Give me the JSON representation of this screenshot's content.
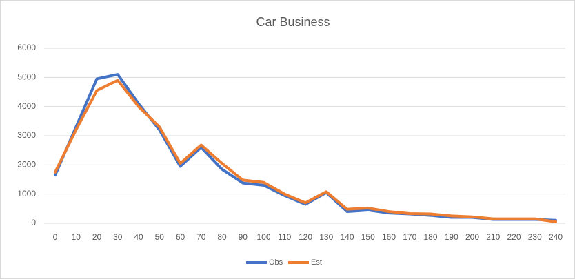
{
  "chart_data": {
    "type": "line",
    "title": "Car Business",
    "categories": [
      0,
      10,
      20,
      30,
      40,
      50,
      60,
      70,
      80,
      90,
      100,
      110,
      120,
      130,
      140,
      150,
      160,
      170,
      180,
      190,
      200,
      210,
      220,
      230,
      240
    ],
    "series": [
      {
        "name": "Obs",
        "color": "#4472c4",
        "values": [
          1650,
          3300,
          4950,
          5100,
          4100,
          3200,
          1950,
          2600,
          1850,
          1380,
          1300,
          950,
          650,
          1050,
          400,
          450,
          350,
          320,
          270,
          200,
          200,
          130,
          130,
          130,
          100
        ]
      },
      {
        "name": "Est",
        "color": "#ed7d31",
        "values": [
          1750,
          3200,
          4550,
          4900,
          4000,
          3300,
          2050,
          2680,
          2050,
          1480,
          1400,
          1000,
          700,
          1080,
          480,
          520,
          400,
          330,
          320,
          250,
          220,
          150,
          150,
          150,
          50
        ]
      }
    ],
    "ylim": [
      0,
      6000
    ],
    "yticks": [
      0,
      1000,
      2000,
      3000,
      4000,
      5000,
      6000
    ],
    "grid": true,
    "legend": "bottom"
  }
}
